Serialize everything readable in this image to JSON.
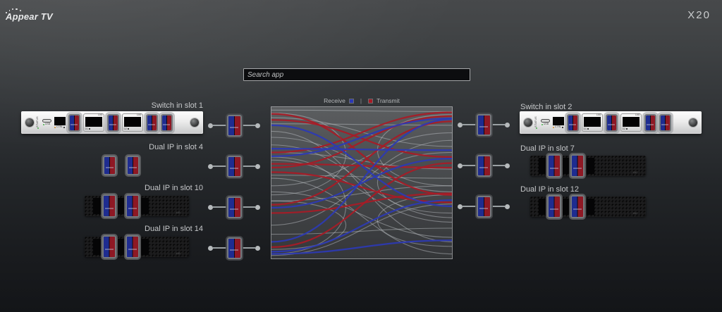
{
  "header": {
    "logo": "Appear TV",
    "model": "X20"
  },
  "search": {
    "placeholder": "Search app"
  },
  "legend": {
    "receive_label": "Receive",
    "transmit_label": "Transmit",
    "separator": "|"
  },
  "switch_face": {
    "status": "STATUS",
    "usb": "USB",
    "ctrl": "CTRL",
    "g10": "10G",
    "d1": "D1",
    "d2": "D2"
  },
  "dualip_face": {
    "g10": "10G"
  },
  "devices": {
    "left": [
      {
        "label": "Switch in slot 1"
      },
      {
        "label": "Dual IP in slot 4"
      },
      {
        "label": "Dual IP in slot 10"
      },
      {
        "label": "Dual IP in slot 14"
      }
    ],
    "right": [
      {
        "label": "Switch in slot 2"
      },
      {
        "label": "Dual IP in slot 7"
      },
      {
        "label": "Dual IP in slot 12"
      }
    ]
  },
  "diagram": {
    "colors": {
      "receive": "#2c39b4",
      "transmit": "#a81b26",
      "inactive": "#b9bec2"
    },
    "links": [
      {
        "a": "L",
        "ya": 0.02,
        "b": "R",
        "yb": 0.03,
        "c": "i"
      },
      {
        "a": "L",
        "ya": 0.07,
        "b": "R",
        "yb": 0.26,
        "c": "i"
      },
      {
        "a": "L",
        "ya": 0.11,
        "b": "R",
        "yb": 0.12,
        "c": "i"
      },
      {
        "a": "L",
        "ya": 0.16,
        "b": "R",
        "yb": 0.89,
        "c": "i"
      },
      {
        "a": "L",
        "ya": 0.2,
        "b": "R",
        "yb": 0.56,
        "c": "i"
      },
      {
        "a": "L",
        "ya": 0.25,
        "b": "R",
        "yb": 0.73,
        "c": "i"
      },
      {
        "a": "L",
        "ya": 0.3,
        "b": "R",
        "yb": 0.41,
        "c": "i"
      },
      {
        "a": "L",
        "ya": 0.35,
        "b": "R",
        "yb": 0.76,
        "c": "i"
      },
      {
        "a": "L",
        "ya": 0.45,
        "b": "R",
        "yb": 0.47,
        "c": "i"
      },
      {
        "a": "L",
        "ya": 0.47,
        "b": "R",
        "yb": 0.97,
        "c": "i"
      },
      {
        "a": "L",
        "ya": 0.52,
        "b": "R",
        "yb": 0.17,
        "c": "i"
      },
      {
        "a": "L",
        "ya": 0.56,
        "b": "R",
        "yb": 0.86,
        "c": "i"
      },
      {
        "a": "L",
        "ya": 0.62,
        "b": "R",
        "yb": 0.52,
        "c": "i"
      },
      {
        "a": "L",
        "ya": 0.78,
        "b": "R",
        "yb": 0.22,
        "c": "i"
      },
      {
        "a": "L",
        "ya": 0.84,
        "b": "R",
        "yb": 0.8,
        "c": "i"
      },
      {
        "a": "L",
        "ya": 0.98,
        "b": "R",
        "yb": 0.64,
        "c": "i"
      },
      {
        "a": "L",
        "ya": 0.04,
        "b": "L",
        "yb": 0.58,
        "c": "i"
      },
      {
        "a": "L",
        "ya": 0.33,
        "b": "L",
        "yb": 0.97,
        "c": "i"
      },
      {
        "a": "L",
        "ya": 0.62,
        "b": "L",
        "yb": 0.94,
        "c": "i"
      },
      {
        "a": "R",
        "ya": 0.05,
        "b": "R",
        "yb": 0.52,
        "c": "i"
      },
      {
        "a": "R",
        "ya": 0.3,
        "b": "R",
        "yb": 0.7,
        "c": "i"
      },
      {
        "a": "R",
        "ya": 0.58,
        "b": "R",
        "yb": 0.92,
        "c": "i"
      },
      {
        "a": "L",
        "ya": 0.045,
        "b": "R",
        "yb": 0.58,
        "c": "t"
      },
      {
        "a": "L",
        "ya": 0.085,
        "b": "R",
        "yb": 0.33,
        "c": "t"
      },
      {
        "a": "L",
        "ya": 0.3,
        "b": "R",
        "yb": 0.035,
        "c": "t"
      },
      {
        "a": "L",
        "ya": 0.4,
        "b": "R",
        "yb": 0.06,
        "c": "t"
      },
      {
        "a": "L",
        "ya": 0.43,
        "b": "R",
        "yb": 0.63,
        "c": "t"
      },
      {
        "a": "L",
        "ya": 0.375,
        "b": "R",
        "yb": 0.4,
        "c": "t"
      },
      {
        "a": "L",
        "ya": 0.645,
        "b": "R",
        "yb": 0.095,
        "c": "t"
      },
      {
        "a": "L",
        "ya": 0.7,
        "b": "R",
        "yb": 0.57,
        "c": "t"
      },
      {
        "a": "L",
        "ya": 0.925,
        "b": "R",
        "yb": 0.37,
        "c": "t"
      },
      {
        "a": "L",
        "ya": 0.275,
        "b": "R",
        "yb": 0.285,
        "c": "r"
      },
      {
        "a": "L",
        "ya": 0.325,
        "b": "R",
        "yb": 0.075,
        "c": "r"
      },
      {
        "a": "L",
        "ya": 0.12,
        "b": "R",
        "yb": 0.655,
        "c": "r"
      },
      {
        "a": "L",
        "ya": 0.665,
        "b": "R",
        "yb": 0.34,
        "c": "r"
      },
      {
        "a": "L",
        "ya": 0.89,
        "b": "R",
        "yb": 0.08,
        "c": "r"
      },
      {
        "a": "L",
        "ya": 0.955,
        "b": "R",
        "yb": 0.615,
        "c": "r"
      },
      {
        "a": "L",
        "ya": 0.97,
        "b": "R",
        "yb": 0.88,
        "c": "r"
      }
    ]
  }
}
